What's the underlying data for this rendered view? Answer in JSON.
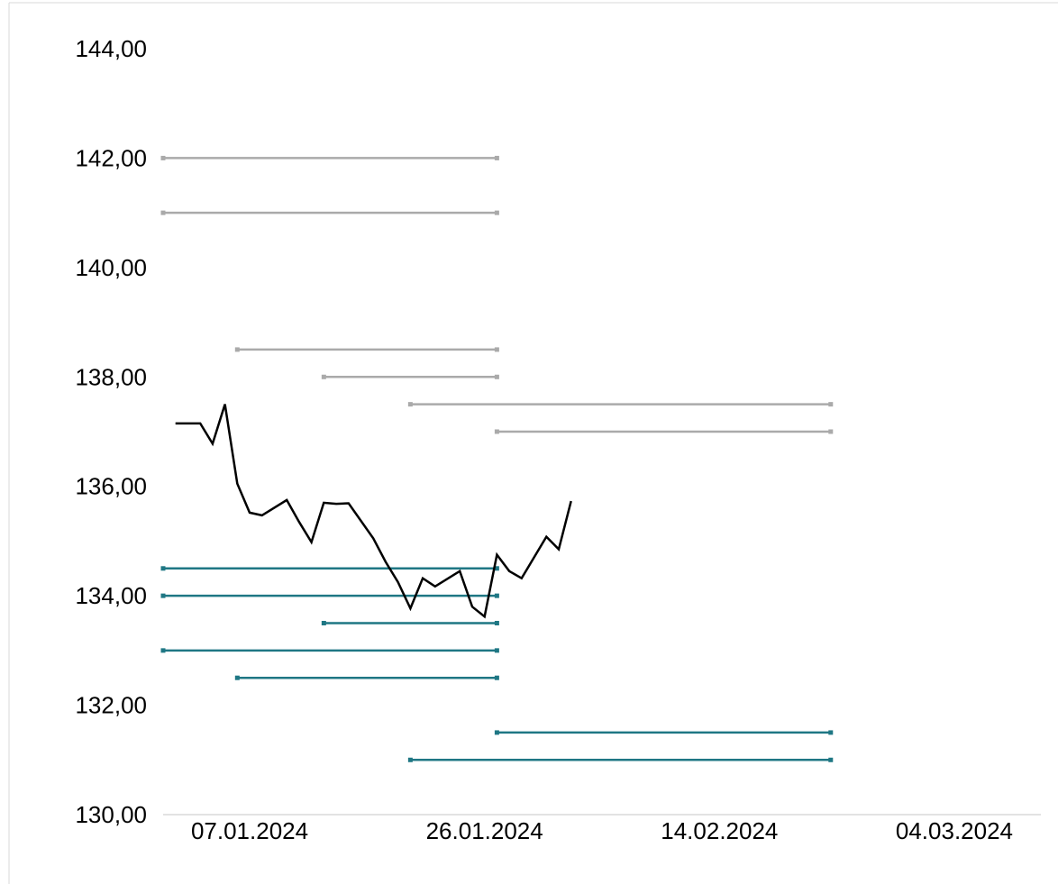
{
  "chart_data": {
    "type": "line",
    "title": "",
    "xlabel": "",
    "ylabel": "",
    "ylim": [
      130,
      144
    ],
    "xlim": [
      "2023-12-31",
      "2024-03-11"
    ],
    "y_ticks": [
      {
        "value": 130,
        "label": "130,00"
      },
      {
        "value": 132,
        "label": "132,00"
      },
      {
        "value": 134,
        "label": "134,00"
      },
      {
        "value": 136,
        "label": "136,00"
      },
      {
        "value": 138,
        "label": "138,00"
      },
      {
        "value": 140,
        "label": "140,00"
      },
      {
        "value": 142,
        "label": "142,00"
      },
      {
        "value": 144,
        "label": "144,00"
      }
    ],
    "x_ticks": [
      {
        "date": "2024-01-07",
        "label": "07.01.2024"
      },
      {
        "date": "2024-01-26",
        "label": "26.01.2024"
      },
      {
        "date": "2024-02-14",
        "label": "14.02.2024"
      },
      {
        "date": "2024-03-04",
        "label": "04.03.2024"
      }
    ],
    "grid": false,
    "legend": "none",
    "price_series": {
      "color": "#000000",
      "points": [
        {
          "date": "2024-01-01",
          "y": 137.15
        },
        {
          "date": "2024-01-03",
          "y": 137.15
        },
        {
          "date": "2024-01-04",
          "y": 136.78
        },
        {
          "date": "2024-01-05",
          "y": 137.5
        },
        {
          "date": "2024-01-06",
          "y": 136.05
        },
        {
          "date": "2024-01-07",
          "y": 135.52
        },
        {
          "date": "2024-01-08",
          "y": 135.47
        },
        {
          "date": "2024-01-10",
          "y": 135.75
        },
        {
          "date": "2024-01-11",
          "y": 135.35
        },
        {
          "date": "2024-01-12",
          "y": 134.98
        },
        {
          "date": "2024-01-13",
          "y": 135.7
        },
        {
          "date": "2024-01-14",
          "y": 135.68
        },
        {
          "date": "2024-01-15",
          "y": 135.69
        },
        {
          "date": "2024-01-17",
          "y": 135.05
        },
        {
          "date": "2024-01-18",
          "y": 134.62
        },
        {
          "date": "2024-01-19",
          "y": 134.25
        },
        {
          "date": "2024-01-20",
          "y": 133.77
        },
        {
          "date": "2024-01-21",
          "y": 134.32
        },
        {
          "date": "2024-01-22",
          "y": 134.17
        },
        {
          "date": "2024-01-24",
          "y": 134.45
        },
        {
          "date": "2024-01-25",
          "y": 133.8
        },
        {
          "date": "2024-01-26",
          "y": 133.62
        },
        {
          "date": "2024-01-27",
          "y": 134.75
        },
        {
          "date": "2024-01-28",
          "y": 134.45
        },
        {
          "date": "2024-01-29",
          "y": 134.32
        },
        {
          "date": "2024-01-31",
          "y": 135.08
        },
        {
          "date": "2024-02-01",
          "y": 134.85
        },
        {
          "date": "2024-02-02",
          "y": 135.73
        }
      ]
    },
    "level_series": [
      {
        "color": "#aaaaaa",
        "levels": [
          {
            "y": 142.0,
            "start": "2023-12-31",
            "end": "2024-01-27"
          },
          {
            "y": 141.0,
            "start": "2023-12-31",
            "end": "2024-01-27"
          },
          {
            "y": 138.5,
            "start": "2024-01-06",
            "end": "2024-01-27"
          },
          {
            "y": 138.0,
            "start": "2024-01-13",
            "end": "2024-01-27"
          },
          {
            "y": 137.5,
            "start": "2024-01-20",
            "end": "2024-02-23"
          },
          {
            "y": 137.0,
            "start": "2024-01-27",
            "end": "2024-02-23"
          }
        ]
      },
      {
        "color": "#1f7784",
        "levels": [
          {
            "y": 134.5,
            "start": "2023-12-31",
            "end": "2024-01-27"
          },
          {
            "y": 134.0,
            "start": "2023-12-31",
            "end": "2024-01-27"
          },
          {
            "y": 133.5,
            "start": "2024-01-13",
            "end": "2024-01-27"
          },
          {
            "y": 133.0,
            "start": "2023-12-31",
            "end": "2024-01-27"
          },
          {
            "y": 132.5,
            "start": "2024-01-06",
            "end": "2024-01-27"
          },
          {
            "y": 131.5,
            "start": "2024-01-27",
            "end": "2024-02-23"
          },
          {
            "y": 131.0,
            "start": "2024-01-20",
            "end": "2024-02-23"
          }
        ]
      }
    ]
  }
}
